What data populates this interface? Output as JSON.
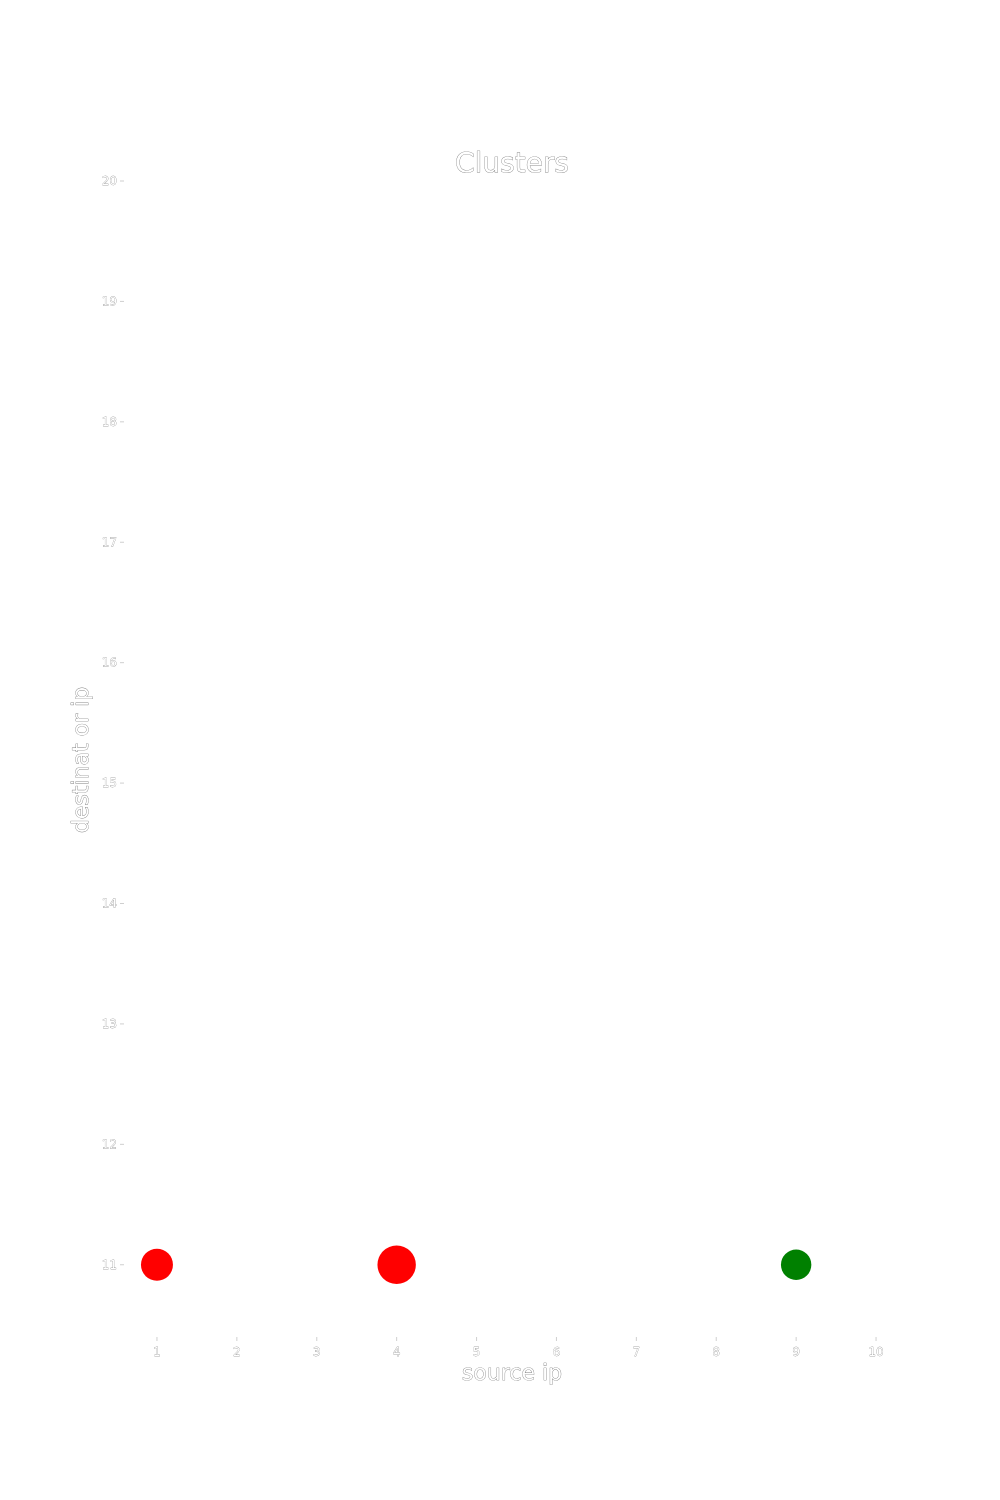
{
  "chart_data": {
    "type": "scatter",
    "title": "Clusters",
    "xlabel": "source ip",
    "ylabel": "destinat or ip",
    "xlim": [
      0.6,
      10.4
    ],
    "ylim": [
      10.4,
      20
    ],
    "xticks": [
      1,
      2,
      3,
      4,
      5,
      6,
      7,
      8,
      9,
      10
    ],
    "yticks": [
      11,
      12,
      13,
      14,
      15,
      16,
      17,
      18,
      19,
      20
    ],
    "grid": false,
    "legend": "none",
    "points": [
      {
        "x": 1,
        "y": 11,
        "color": "#ff0000",
        "size": 1.0
      },
      {
        "x": 4,
        "y": 11,
        "color": "#ff0000",
        "size": 1.2
      },
      {
        "x": 9,
        "y": 11,
        "color": "#008000",
        "size": 0.95
      }
    ]
  }
}
